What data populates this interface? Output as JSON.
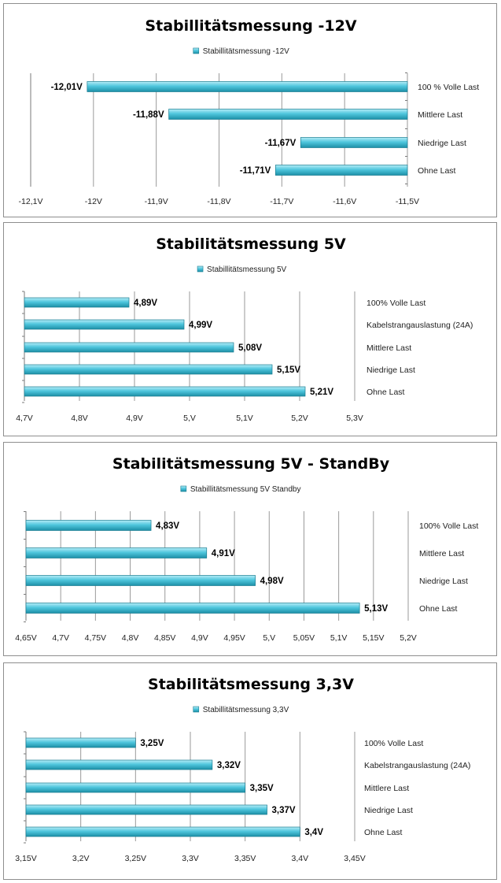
{
  "colors": {
    "bar_top": "#b5ecf7",
    "bar_mid": "#4fc6dd",
    "bar_bottom": "#1c8fa6",
    "bar_edge": "#1a7d92"
  },
  "chart_data": [
    {
      "type": "bar",
      "title": "Stabillitätsmessung -12V",
      "legend": "Stabillitätsmessung  -12V",
      "categories": [
        "100 % Volle Last",
        "Mittlere Last",
        "Niedrige Last",
        "Ohne Last"
      ],
      "values": [
        -12.01,
        -11.88,
        -11.67,
        -11.71
      ],
      "value_labels": [
        "-12,01V",
        "-11,88V",
        "-11,67V",
        "-11,71V"
      ],
      "xlim": [
        -12.1,
        -11.5
      ],
      "ticks": [
        -12.1,
        -12,
        -11.9,
        -11.8,
        -11.7,
        -11.6,
        -11.5
      ],
      "tick_labels": [
        "-12,1V",
        "-12V",
        "-11,9V",
        "-11,8V",
        "-11,7V",
        "-11,6V",
        "-11,5V"
      ],
      "bar_base": "max",
      "grid": true,
      "legend_position": "top"
    },
    {
      "type": "bar",
      "title": "Stabilitätsmessung 5V",
      "legend": "Stabillitätsmessung  5V",
      "categories": [
        "100% Volle Last",
        "Kabelstrangauslastung  (24A)",
        "Mittlere Last",
        "Niedrige Last",
        "Ohne Last"
      ],
      "values": [
        4.89,
        4.99,
        5.08,
        5.15,
        5.21
      ],
      "value_labels": [
        "4,89V",
        "4,99V",
        "5,08V",
        "5,15V",
        "5,21V"
      ],
      "xlim": [
        4.7,
        5.3
      ],
      "ticks": [
        4.7,
        4.8,
        4.9,
        5.0,
        5.1,
        5.2,
        5.3
      ],
      "tick_labels": [
        "4,7V",
        "4,8V",
        "4,9V",
        "5,V",
        "5,1V",
        "5,2V",
        "5,3V"
      ],
      "bar_base": "min",
      "grid": true,
      "legend_position": "top"
    },
    {
      "type": "bar",
      "title": "Stabilitätsmessung 5V - StandBy",
      "legend": "Stabillitätsmessung  5V Standby",
      "categories": [
        "100% Volle Last",
        "Mittlere Last",
        "Niedrige Last",
        "Ohne Last"
      ],
      "values": [
        4.83,
        4.91,
        4.98,
        5.13
      ],
      "value_labels": [
        "4,83V",
        "4,91V",
        "4,98V",
        "5,13V"
      ],
      "xlim": [
        4.65,
        5.2
      ],
      "ticks": [
        4.65,
        4.7,
        4.75,
        4.8,
        4.85,
        4.9,
        4.95,
        5.0,
        5.05,
        5.1,
        5.15,
        5.2
      ],
      "tick_labels": [
        "4,65V",
        "4,7V",
        "4,75V",
        "4,8V",
        "4,85V",
        "4,9V",
        "4,95V",
        "5,V",
        "5,05V",
        "5,1V",
        "5,15V",
        "5,2V"
      ],
      "bar_base": "min",
      "grid": true,
      "legend_position": "top"
    },
    {
      "type": "bar",
      "title": "Stabilitätsmessung 3,3V",
      "legend": "Stabillitätsmessung  3,3V",
      "categories": [
        "100% Volle Last",
        "Kabelstrangauslastung  (24A)",
        "Mittlere Last",
        "Niedrige Last",
        "Ohne Last"
      ],
      "values": [
        3.25,
        3.32,
        3.35,
        3.37,
        3.4
      ],
      "value_labels": [
        "3,25V",
        "3,32V",
        "3,35V",
        "3,37V",
        "3,4V"
      ],
      "xlim": [
        3.15,
        3.45
      ],
      "ticks": [
        3.15,
        3.2,
        3.25,
        3.3,
        3.35,
        3.4,
        3.45
      ],
      "tick_labels": [
        "3,15V",
        "3,2V",
        "3,25V",
        "3,3V",
        "3,35V",
        "3,4V",
        "3,45V"
      ],
      "bar_base": "min",
      "grid": true,
      "legend_position": "top"
    }
  ]
}
